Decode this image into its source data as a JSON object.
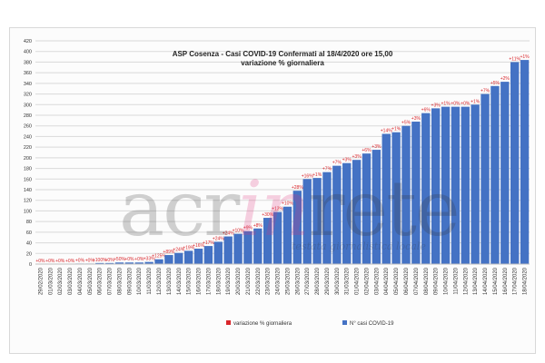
{
  "chart_data": {
    "type": "bar",
    "title": "ASP Cosenza - Casi COVID-19 Confermati al 18/4/2020 ore 15,00",
    "subtitle": "variazione % giornaliera",
    "ylim": [
      0,
      420
    ],
    "yticks": [
      0,
      20,
      40,
      60,
      80,
      100,
      120,
      140,
      160,
      180,
      200,
      220,
      240,
      260,
      280,
      300,
      320,
      340,
      360,
      380,
      400,
      420
    ],
    "grid": true,
    "legend_position": "bottom",
    "legend": [
      {
        "label": "variazione % giornaliera",
        "color": "#d9262b"
      },
      {
        "label": "N° casi COVID-19",
        "color": "#4472c4"
      }
    ],
    "categories": [
      "29/02/2020",
      "01/03/2020",
      "02/03/2020",
      "03/03/2020",
      "04/03/2020",
      "05/03/2020",
      "06/03/2020",
      "07/03/2020",
      "08/03/2020",
      "09/03/2020",
      "10/03/2020",
      "11/03/2020",
      "12/03/2020",
      "13/03/2020",
      "14/03/2020",
      "15/03/2020",
      "16/03/2020",
      "17/03/2020",
      "18/03/2020",
      "19/03/2020",
      "20/03/2020",
      "21/03/2020",
      "22/03/2020",
      "23/03/2020",
      "24/03/2020",
      "25/03/2020",
      "26/03/2020",
      "27/03/2020",
      "28/03/2020",
      "29/03/2020",
      "30/03/2020",
      "31/03/2020",
      "01/04/2020",
      "02/04/2020",
      "03/04/2020",
      "04/04/2020",
      "05/04/2020",
      "06/04/2020",
      "07/04/2020",
      "08/04/2020",
      "09/04/2020",
      "10/04/2020",
      "11/04/2020",
      "12/04/2020",
      "13/04/2020",
      "14/04/2020",
      "15/04/2020",
      "16/04/2020",
      "17/04/2020",
      "18/04/2020"
    ],
    "series": [
      {
        "name": "N° casi COVID-19",
        "values": [
          0,
          0,
          0,
          0,
          1,
          1,
          2,
          2,
          3,
          3,
          3,
          4,
          9,
          17,
          21,
          25,
          29,
          34,
          42,
          52,
          57,
          62,
          67,
          87,
          98,
          108,
          138,
          160,
          162,
          173,
          185,
          190,
          196,
          208,
          215,
          245,
          248,
          260,
          268,
          284,
          293,
          296,
          296,
          296,
          300,
          320,
          335,
          343,
          380,
          384
        ]
      }
    ],
    "bar_labels": [
      "+0%",
      "+0%",
      "+0%",
      "+0%",
      "+0%",
      "+0%",
      "+100%",
      "+0%",
      "+50%",
      "+0%",
      "+0%",
      "+33%",
      "+125%",
      "+89%",
      "+24%",
      "+19%",
      "+16%",
      "+17%",
      "+24%",
      "+24%",
      "+10%",
      "+9%",
      "+8%",
      "+30%",
      "+13%",
      "+10%",
      "+28%",
      "+16%",
      "+1%",
      "+7%",
      "+7%",
      "+3%",
      "+3%",
      "+6%",
      "+3%",
      "+14%",
      "+1%",
      "+5%",
      "+3%",
      "+6%",
      "+3%",
      "+1%",
      "+0%",
      "+0%",
      "+1%",
      "+7%",
      "+5%",
      "+2%",
      "+11%",
      "+1%"
    ]
  }
}
